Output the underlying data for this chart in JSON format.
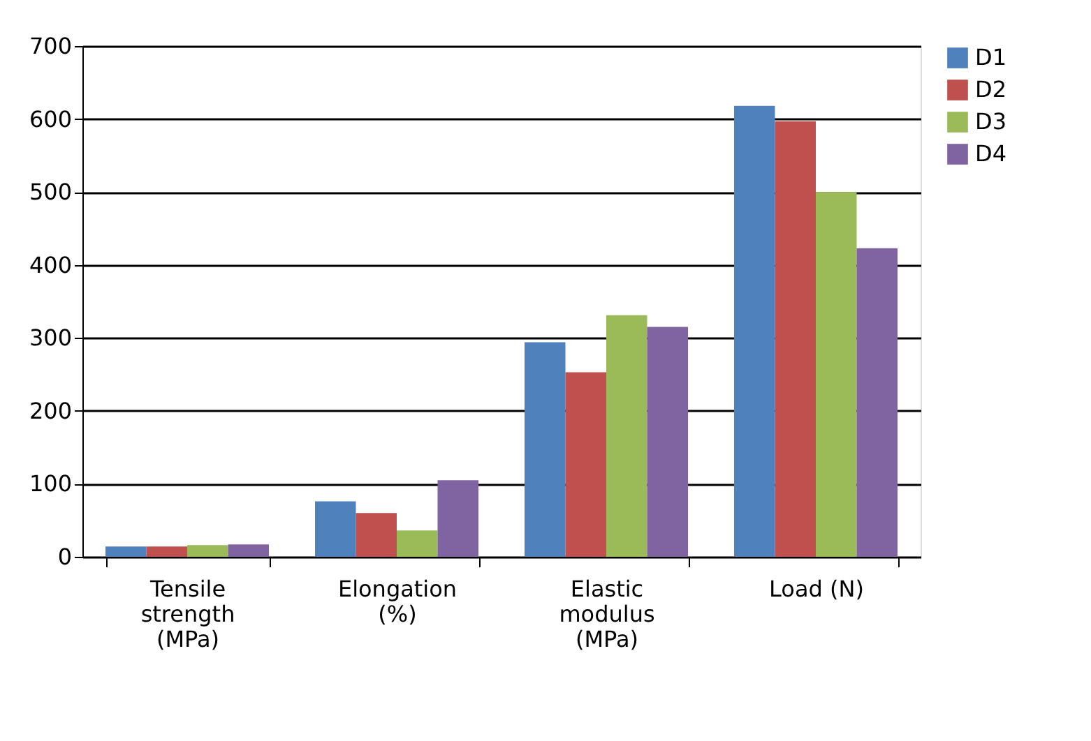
{
  "chart_data": {
    "type": "bar",
    "categories": [
      "Tensile strength (MPa)",
      "Elongation (%)",
      "Elastic modulus (MPa)",
      "Load (N)"
    ],
    "series": [
      {
        "name": "D1",
        "color": "#4f81bd",
        "values": [
          14,
          76,
          294,
          618
        ]
      },
      {
        "name": "D2",
        "color": "#c0504d",
        "values": [
          14,
          60,
          253,
          597
        ]
      },
      {
        "name": "D3",
        "color": "#9bbb59",
        "values": [
          16,
          36,
          331,
          500
        ]
      },
      {
        "name": "D4",
        "color": "#8064a2",
        "values": [
          17,
          105,
          315,
          423
        ]
      }
    ],
    "ylim": [
      0,
      700
    ],
    "yticks": [
      0,
      100,
      200,
      300,
      400,
      500,
      600,
      700
    ],
    "grid": "y",
    "legend": "right"
  }
}
